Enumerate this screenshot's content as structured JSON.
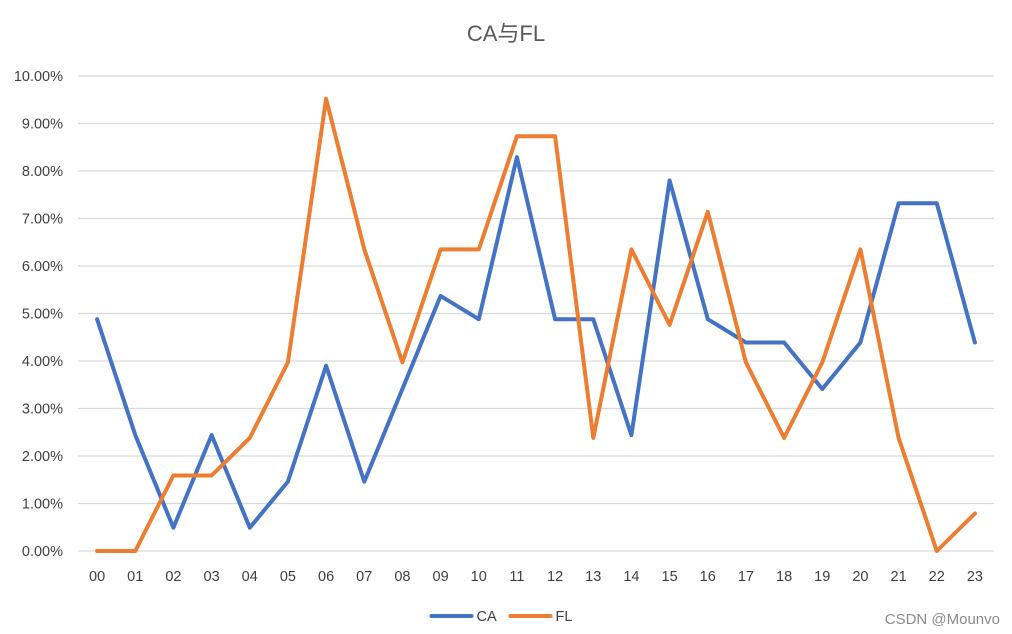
{
  "chart_data": {
    "type": "line",
    "title": "CA与FL",
    "xlabel": "",
    "ylabel": "",
    "categories": [
      "00",
      "01",
      "02",
      "03",
      "04",
      "05",
      "06",
      "07",
      "08",
      "09",
      "10",
      "11",
      "12",
      "13",
      "14",
      "15",
      "16",
      "17",
      "18",
      "19",
      "20",
      "21",
      "22",
      "23"
    ],
    "y_ticks": [
      "0.00%",
      "1.00%",
      "2.00%",
      "3.00%",
      "4.00%",
      "5.00%",
      "6.00%",
      "7.00%",
      "8.00%",
      "9.00%",
      "10.00%"
    ],
    "ylim": [
      0,
      10
    ],
    "grid": true,
    "legend_position": "bottom-center",
    "series": [
      {
        "name": "CA",
        "color": "#4472C4",
        "values": [
          4.88,
          2.44,
          0.49,
          2.44,
          0.49,
          1.46,
          3.9,
          1.46,
          3.41,
          5.37,
          4.88,
          8.29,
          4.88,
          4.88,
          2.44,
          7.8,
          4.88,
          4.39,
          4.39,
          3.41,
          4.39,
          7.32,
          7.32,
          4.39
        ]
      },
      {
        "name": "FL",
        "color": "#ED7D31",
        "values": [
          0.0,
          0.0,
          1.59,
          1.59,
          2.38,
          3.97,
          9.52,
          6.35,
          3.97,
          6.35,
          6.35,
          8.73,
          8.73,
          2.38,
          6.35,
          4.76,
          7.14,
          3.97,
          2.38,
          3.97,
          6.35,
          2.38,
          0.0,
          0.79
        ]
      }
    ]
  },
  "watermark": "CSDN @Mounvo"
}
